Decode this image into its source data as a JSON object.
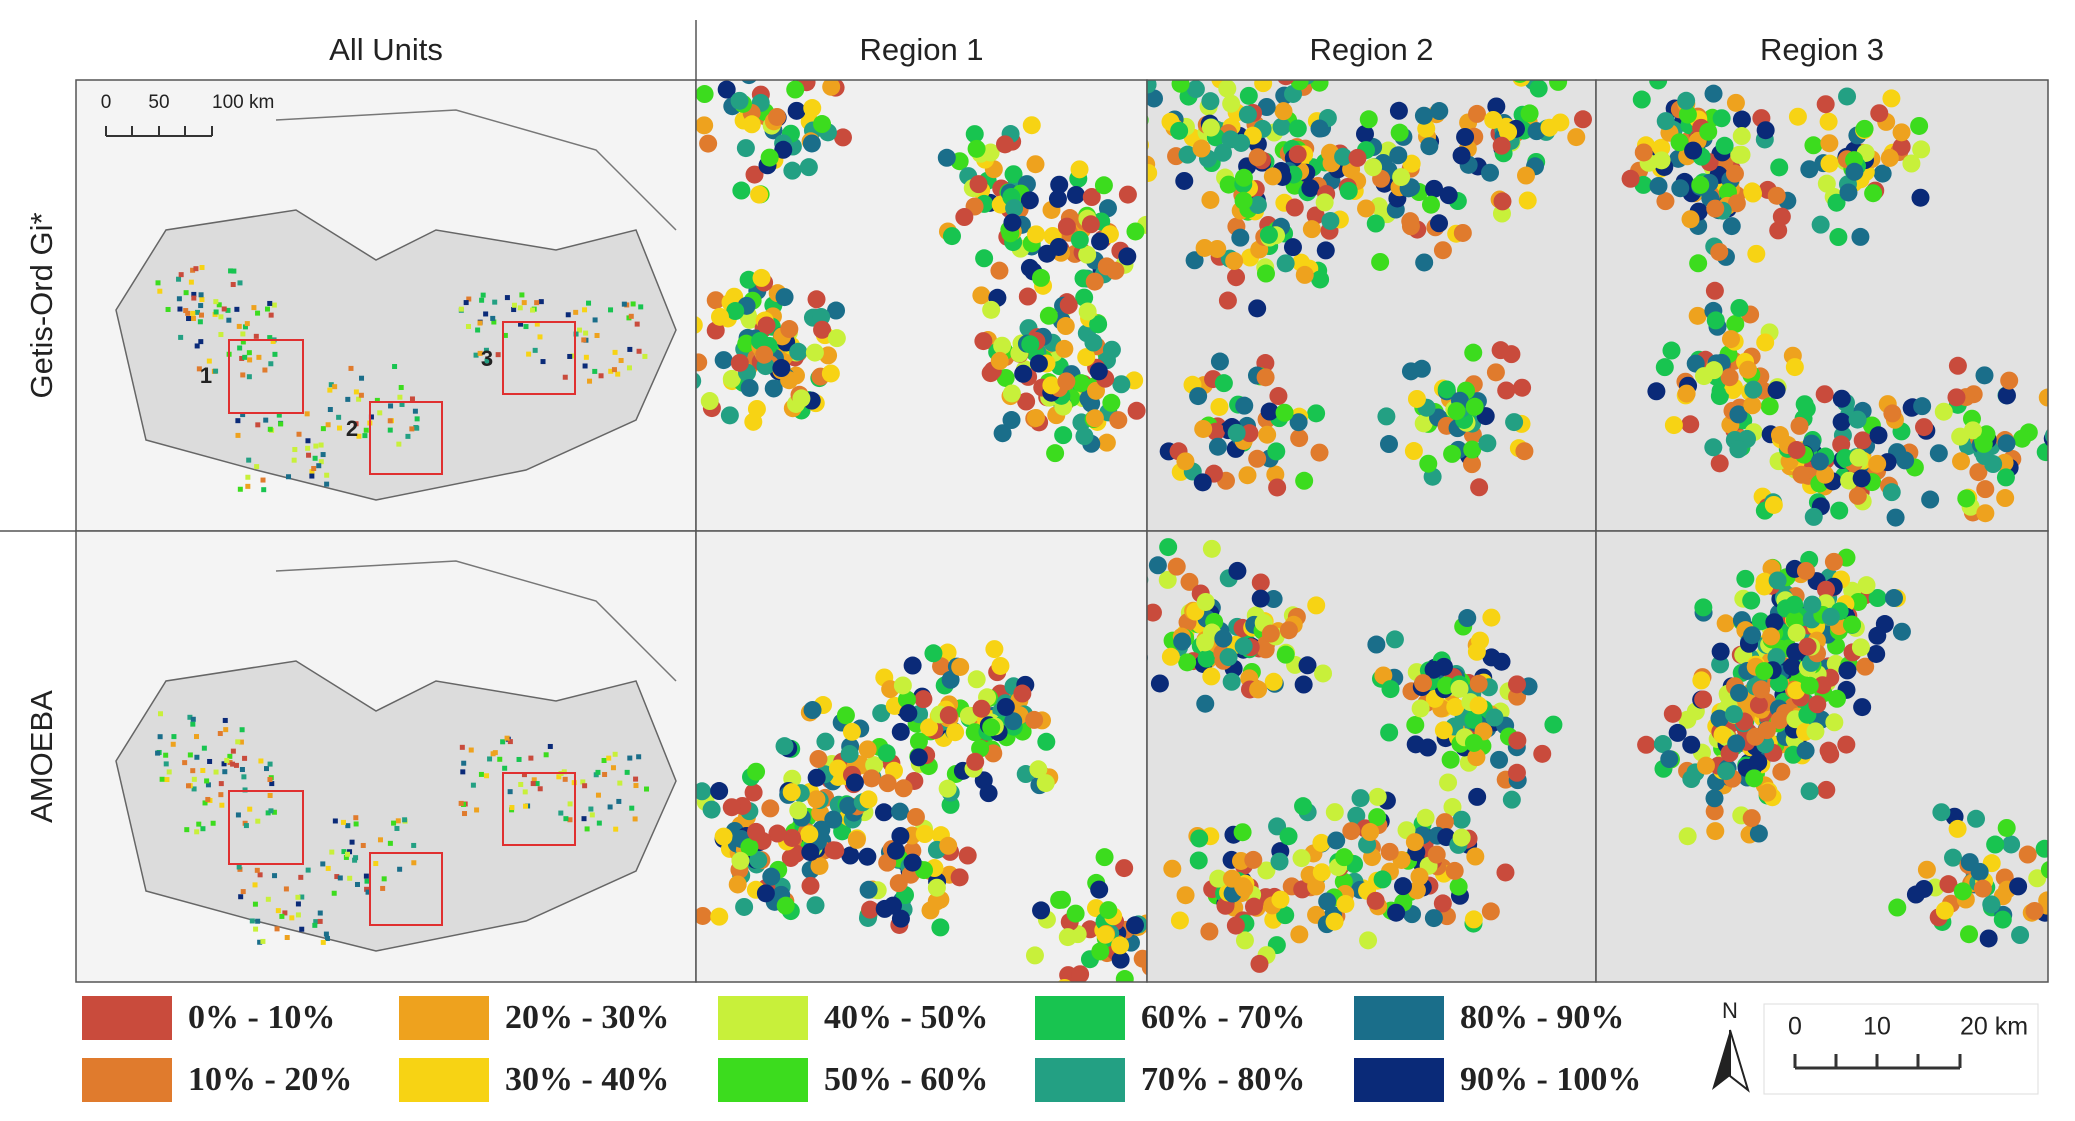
{
  "columns": [
    "All Units",
    "Region 1",
    "Region 2",
    "Region 3"
  ],
  "rows": [
    "Getis-Ord Gi*",
    "AMOEBA"
  ],
  "overview_scale": {
    "labels": [
      "0",
      "50",
      "100 km"
    ]
  },
  "region_labels": [
    "1",
    "2",
    "3"
  ],
  "legend": [
    {
      "label": "0% - 10%",
      "color": "#c94b3c"
    },
    {
      "label": "10% - 20%",
      "color": "#e07b2d"
    },
    {
      "label": "20% - 30%",
      "color": "#eea21e"
    },
    {
      "label": "30% - 40%",
      "color": "#f7d314"
    },
    {
      "label": "40% - 50%",
      "color": "#c8f03a"
    },
    {
      "label": "50% - 60%",
      "color": "#3cdc1e"
    },
    {
      "label": "60% - 70%",
      "color": "#18c450"
    },
    {
      "label": "70% - 80%",
      "color": "#23a083"
    },
    {
      "label": "80% - 90%",
      "color": "#1a6e8a"
    },
    {
      "label": "90% - 100%",
      "color": "#0a2a78"
    }
  ],
  "north": "N",
  "scale_bar": {
    "labels": [
      "0",
      "10",
      "20 km"
    ]
  }
}
